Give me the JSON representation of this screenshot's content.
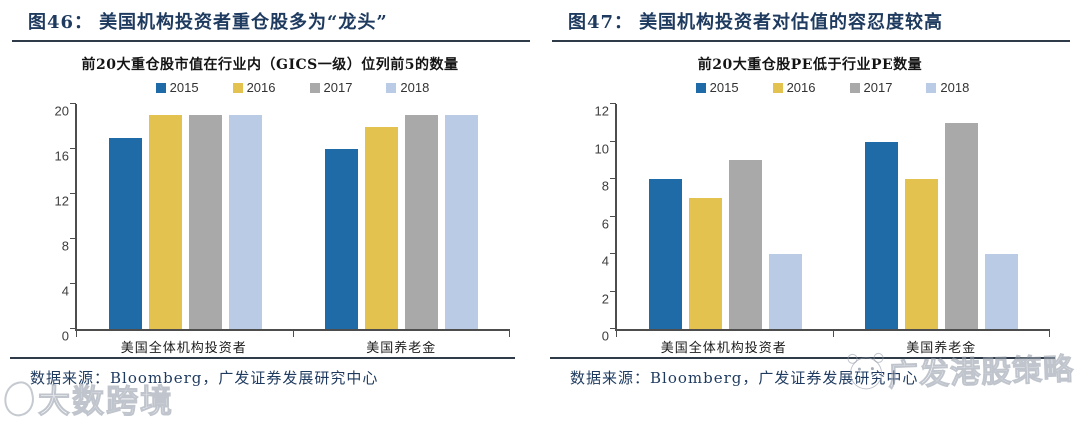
{
  "colors": {
    "y2015": "#1F6BA7",
    "y2016": "#E3C24F",
    "y2017": "#A9A9A9",
    "y2018": "#B9CBE5",
    "title_navy": "#1E3A5F",
    "axis": "#4D4D4D"
  },
  "panels": [
    {
      "figure_label": "图46：",
      "title": "美国机构投资者重仓股多为“龙头”",
      "source": "数据来源：Bloomberg，广发证券发展研究中心"
    },
    {
      "figure_label": "图47：",
      "title": "美国机构投资者对估值的容忍度较高",
      "source": "数据来源：Bloomberg，广发证券发展研究中心"
    }
  ],
  "chart_data": [
    {
      "type": "bar",
      "title": "前20大重仓股市值在行业内（GICS一级）位列前5的数量",
      "categories": [
        "美国全体机构投资者",
        "美国养老金"
      ],
      "series": [
        {
          "name": "2015",
          "color": "#1F6BA7",
          "values": [
            17,
            16
          ]
        },
        {
          "name": "2016",
          "color": "#E3C24F",
          "values": [
            19,
            18
          ]
        },
        {
          "name": "2017",
          "color": "#A9A9A9",
          "values": [
            19,
            19
          ]
        },
        {
          "name": "2018",
          "color": "#B9CBE5",
          "values": [
            19,
            19
          ]
        }
      ],
      "ylim": [
        0,
        20
      ],
      "yticks": [
        0,
        4,
        8,
        12,
        16,
        20
      ],
      "grid": false,
      "legend_position": "top"
    },
    {
      "type": "bar",
      "title": "前20大重仓股PE低于行业PE数量",
      "categories": [
        "美国全体机构投资者",
        "美国养老金"
      ],
      "series": [
        {
          "name": "2015",
          "color": "#1F6BA7",
          "values": [
            8,
            10
          ]
        },
        {
          "name": "2016",
          "color": "#E3C24F",
          "values": [
            7,
            8
          ]
        },
        {
          "name": "2017",
          "color": "#A9A9A9",
          "values": [
            9,
            11
          ]
        },
        {
          "name": "2018",
          "color": "#B9CBE5",
          "values": [
            4,
            4
          ]
        }
      ],
      "ylim": [
        0,
        12
      ],
      "yticks": [
        0,
        2,
        4,
        6,
        8,
        10,
        12
      ],
      "grid": false,
      "legend_position": "top"
    }
  ],
  "watermarks": {
    "bottom_left": "大数跨境",
    "bottom_right": "广发港股策略"
  }
}
